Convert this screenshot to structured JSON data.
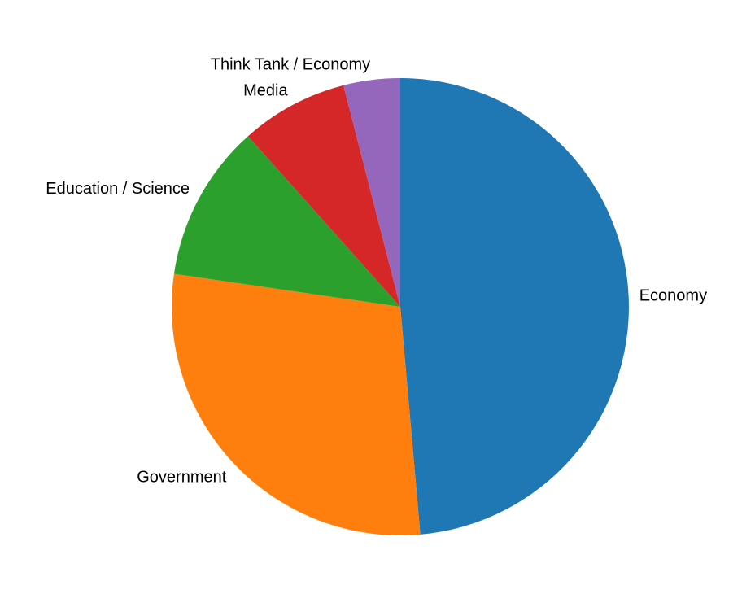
{
  "chart_data": {
    "type": "pie",
    "title": "",
    "start_angle_deg": 0,
    "direction": "clockwise",
    "slices": [
      {
        "label": "Economy",
        "value": 48.6,
        "color": "#1f77b4"
      },
      {
        "label": "Government",
        "value": 28.7,
        "color": "#ff7f0e"
      },
      {
        "label": "Education / Science",
        "value": 11.1,
        "color": "#2ca02c"
      },
      {
        "label": "Media",
        "value": 7.6,
        "color": "#d62728"
      },
      {
        "label": "Think Tank / Economy",
        "value": 4.0,
        "color": "#9467bd"
      }
    ]
  }
}
